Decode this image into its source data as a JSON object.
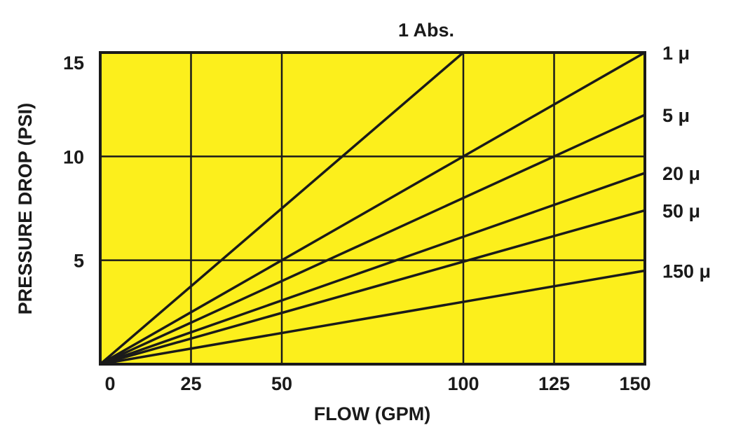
{
  "colors": {
    "plot_background": "#fcef1c",
    "lines": "#1a1a1a",
    "grid": "#1a1a1a"
  },
  "chart_data": {
    "type": "line",
    "title": "1 Abs.",
    "xlabel": "FLOW (GPM)",
    "ylabel": "PRESSURE DROP (PSI)",
    "xlim": [
      0,
      150
    ],
    "ylim": [
      0,
      15
    ],
    "x_ticks": [
      0,
      25,
      50,
      100,
      125,
      150
    ],
    "x_tick_labels": [
      "0",
      "25",
      "50",
      "100",
      "125",
      "150"
    ],
    "x_gridlines": [
      25,
      50,
      100,
      125
    ],
    "y_ticks": [
      5,
      10,
      15
    ],
    "y_tick_labels": [
      "5",
      "10",
      "15"
    ],
    "y_gridlines": [
      5,
      10
    ],
    "grid": true,
    "legend": "labels at right end of each line",
    "series": [
      {
        "label_text": "",
        "x": [
          0,
          100
        ],
        "y": [
          0,
          15
        ]
      },
      {
        "label_text": "1 μ",
        "x": [
          0,
          150
        ],
        "y": [
          0,
          15
        ]
      },
      {
        "label_text": "5 μ",
        "x": [
          0,
          150
        ],
        "y": [
          0,
          12
        ]
      },
      {
        "label_text": "20 μ",
        "x": [
          0,
          150
        ],
        "y": [
          0,
          9.2
        ]
      },
      {
        "label_text": "50 μ",
        "x": [
          0,
          150
        ],
        "y": [
          0,
          7.4
        ]
      },
      {
        "label_text": "150 μ",
        "x": [
          0,
          150
        ],
        "y": [
          0,
          4.5
        ]
      }
    ]
  }
}
